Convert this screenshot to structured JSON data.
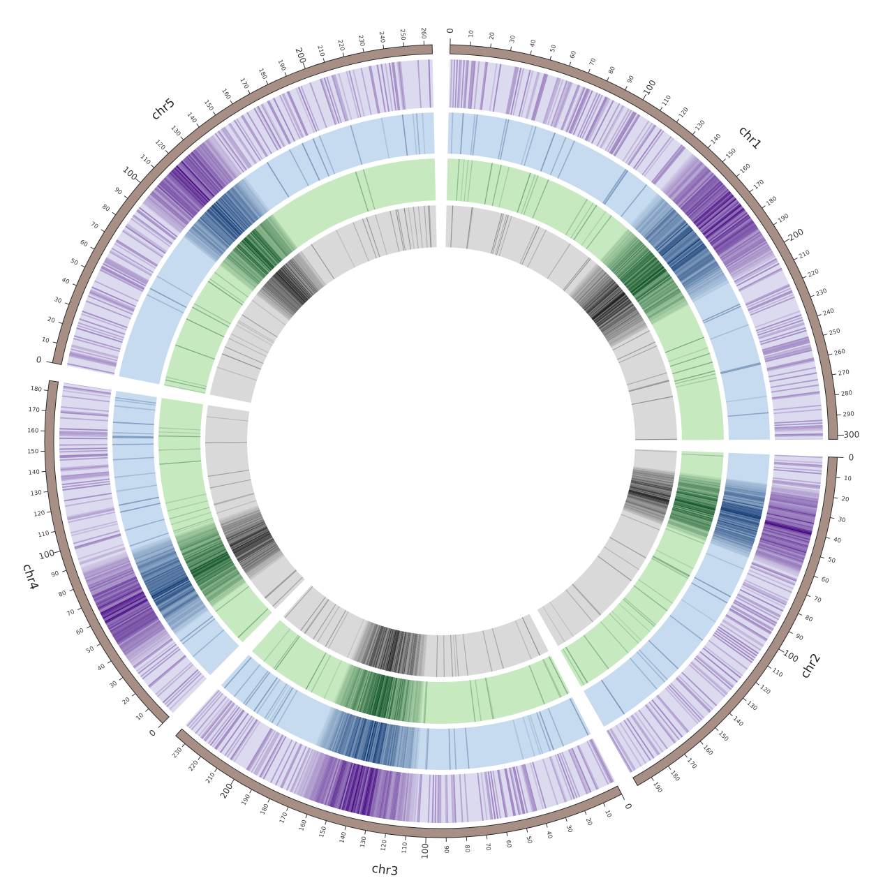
{
  "chart_data": {
    "type": "circos",
    "unit": "Mb",
    "chromosomes": [
      {
        "name": "chr1",
        "length": 302,
        "label_ticks": [
          0,
          10,
          20,
          30,
          40,
          50,
          60,
          70,
          80,
          90,
          100,
          110,
          120,
          130,
          140,
          150,
          160,
          170,
          180,
          190,
          200,
          210,
          220,
          230,
          240,
          250,
          260,
          270,
          280,
          290,
          300
        ]
      },
      {
        "name": "chr2",
        "length": 198,
        "label_ticks": [
          0,
          10,
          20,
          30,
          40,
          50,
          60,
          70,
          80,
          90,
          100,
          110,
          120,
          130,
          140,
          150,
          160,
          170,
          180,
          190
        ]
      },
      {
        "name": "chr3",
        "length": 236,
        "label_ticks": [
          0,
          10,
          20,
          30,
          40,
          50,
          60,
          70,
          80,
          90,
          100,
          110,
          120,
          130,
          140,
          150,
          160,
          170,
          180,
          190,
          200,
          210,
          220,
          230
        ]
      },
      {
        "name": "chr4",
        "length": 185,
        "label_ticks": [
          0,
          10,
          20,
          30,
          40,
          50,
          60,
          70,
          80,
          90,
          100,
          110,
          120,
          130,
          140,
          150,
          160,
          170,
          180
        ]
      },
      {
        "name": "chr5",
        "length": 264,
        "label_ticks": [
          0,
          10,
          20,
          30,
          40,
          50,
          60,
          70,
          80,
          90,
          100,
          110,
          120,
          130,
          140,
          150,
          160,
          170,
          180,
          190,
          200,
          210,
          220,
          230,
          240,
          250,
          260
        ]
      }
    ],
    "major_tick_values": [
      0,
      100,
      200,
      300
    ],
    "tracks": [
      {
        "palette": "purple",
        "base_color": "#dcdaee",
        "hot_color": "#3f007d"
      },
      {
        "palette": "blue",
        "base_color": "#c6dbef",
        "hot_color": "#08306b"
      },
      {
        "palette": "green",
        "base_color": "#c7e9c0",
        "hot_color": "#00441b"
      },
      {
        "palette": "gray",
        "base_color": "#d9d9d9",
        "hot_color": "#111111"
      }
    ],
    "hotspots": {
      "chr1": [
        [
          140,
          200
        ]
      ],
      "chr2": [
        [
          20,
          60
        ]
      ],
      "chr3": [
        [
          110,
          165
        ]
      ],
      "chr4": [
        [
          35,
          85
        ]
      ],
      "chr5": [
        [
          95,
          140
        ]
      ]
    },
    "ideogram_color": "#a88f86"
  }
}
